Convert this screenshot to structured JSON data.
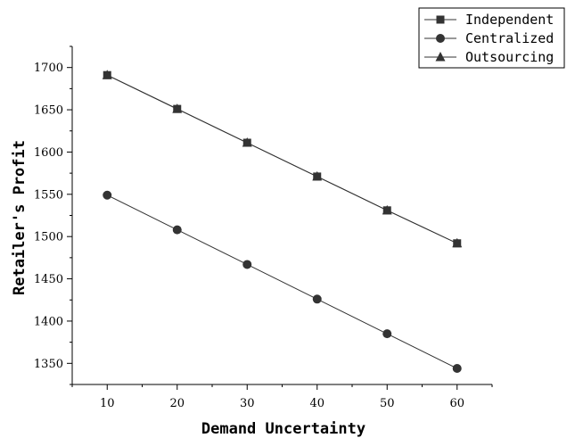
{
  "chart_data": {
    "type": "line",
    "xlabel": "Demand Uncertainty",
    "ylabel": "Retailer's Profit",
    "x": [
      10,
      20,
      30,
      40,
      50,
      60
    ],
    "xlim": [
      5,
      65
    ],
    "ylim": [
      1325,
      1725
    ],
    "xticks": [
      10,
      20,
      30,
      40,
      50,
      60
    ],
    "yticks": [
      1350,
      1400,
      1450,
      1500,
      1550,
      1600,
      1650,
      1700
    ],
    "grid": false,
    "legend_position": "top-right",
    "series": [
      {
        "name": "Independent",
        "marker": "square",
        "color": "#333333",
        "values": [
          1691,
          1651,
          1611,
          1571,
          1531,
          1492
        ]
      },
      {
        "name": "Centralized",
        "marker": "circle",
        "color": "#333333",
        "values": [
          1549,
          1508,
          1467,
          1426,
          1385,
          1344
        ]
      },
      {
        "name": "Outsourcing",
        "marker": "triangle",
        "color": "#333333",
        "values": [
          1691,
          1651,
          1611,
          1571,
          1531,
          1492
        ]
      }
    ]
  }
}
